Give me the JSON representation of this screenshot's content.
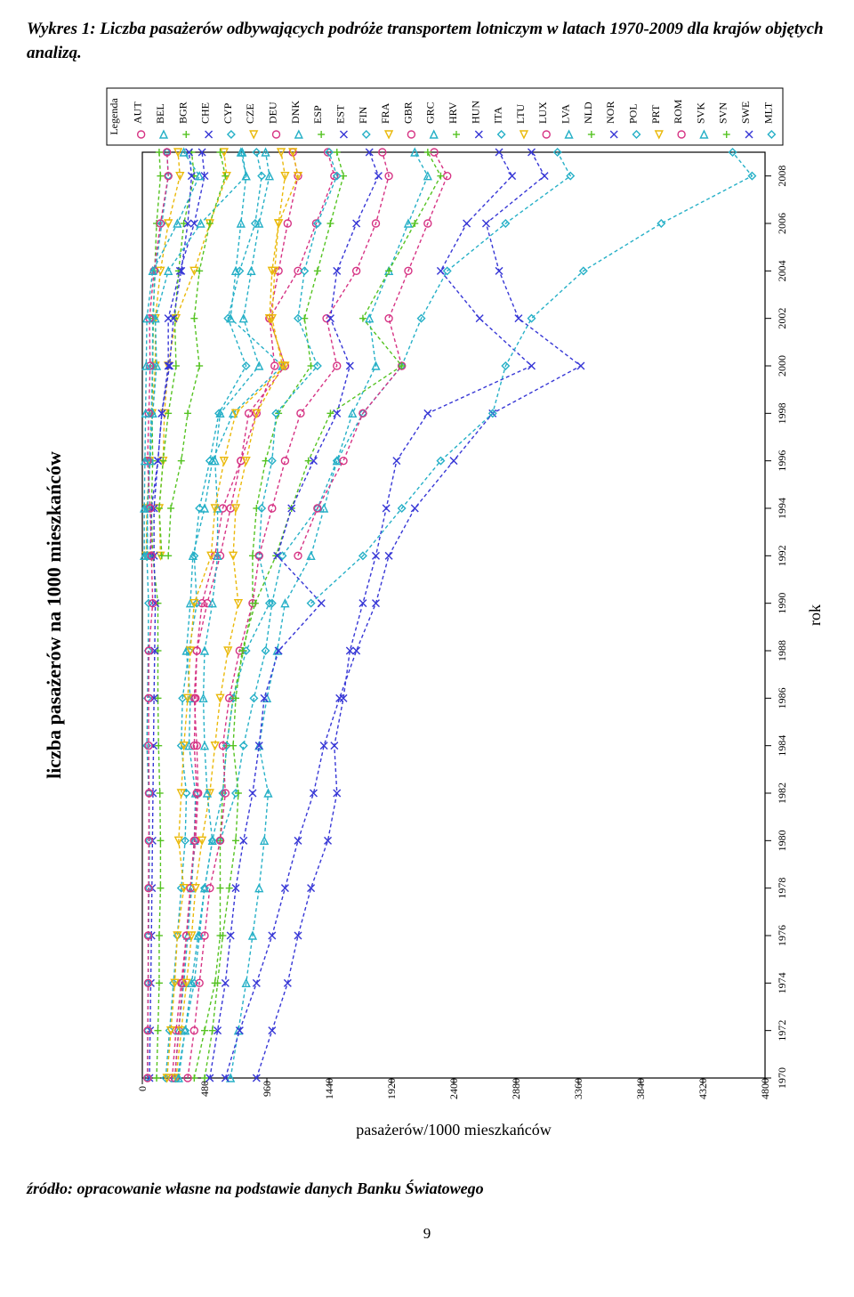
{
  "caption_prefix": "Wykres 1: ",
  "caption_rest": "Liczba pasażerów odbywających podróże transportem lotniczym w latach 1970-2009 dla krajów objętych analizą.",
  "y_outer_label": "liczba pasażerów na 1000 mieszkańców",
  "y_inner_label": "pasażerów/1000 mieszkańców",
  "x_label": "rok",
  "legend_title": "Legenda",
  "source": "źródło: opracowanie własne na podstawie danych Banku Światowego",
  "page_number": "9",
  "chart": {
    "type": "line",
    "background": "#ffffff",
    "axis_fontsize": 14,
    "tick_fontsize": 12,
    "legend_fontsize": 12,
    "line_width": 1.4,
    "line_dash": "4 3",
    "marker_size": 4,
    "marker_stroke": 1.4,
    "xlim": [
      1970,
      2009
    ],
    "xticks": [
      1970,
      1972,
      1974,
      1976,
      1978,
      1980,
      1982,
      1984,
      1986,
      1988,
      1990,
      1992,
      1994,
      1996,
      1998,
      2000,
      2002,
      2004,
      2006,
      2008
    ],
    "ylim": [
      0,
      4800
    ],
    "yticks": [
      0,
      480,
      960,
      1440,
      1920,
      2400,
      2880,
      3360,
      3840,
      4320,
      4800
    ],
    "years": [
      1970,
      1972,
      1974,
      1976,
      1978,
      1980,
      1982,
      1984,
      1986,
      1988,
      1990,
      1992,
      1994,
      1996,
      1998,
      2000,
      2002,
      2004,
      2006,
      2008,
      2009
    ],
    "markers": [
      "circle",
      "triangle",
      "plus",
      "x",
      "diamond",
      "down",
      "circle",
      "triangle",
      "plus",
      "x",
      "diamond",
      "down",
      "circle",
      "triangle",
      "plus",
      "x",
      "diamond",
      "down",
      "circle",
      "triangle",
      "plus",
      "x",
      "diamond",
      "down",
      "circle",
      "triangle",
      "plus",
      "x",
      "diamond"
    ],
    "colors": [
      "#d63384",
      "#26b0c7",
      "#55c322",
      "#3737d6",
      "#26b0c7",
      "#eab90a",
      "#d63384",
      "#26b0c7",
      "#55c322",
      "#3737d6",
      "#26b0c7",
      "#eab90a",
      "#d63384",
      "#26b0c7",
      "#55c322",
      "#3737d6",
      "#26b0c7",
      "#eab90a",
      "#d63384",
      "#26b0c7",
      "#55c322",
      "#3737d6",
      "#26b0c7",
      "#eab90a",
      "#d63384",
      "#26b0c7",
      "#55c322",
      "#3737d6",
      "#26b0c7"
    ],
    "series": [
      {
        "code": "AUT",
        "vals": [
          230,
          260,
          300,
          340,
          370,
          410,
          430,
          420,
          400,
          420,
          460,
          560,
          620,
          760,
          880,
          1020,
          980,
          1050,
          1120,
          1200,
          1160
        ]
      },
      {
        "code": "BEL",
        "vals": [
          250,
          280,
          320,
          350,
          380,
          400,
          410,
          360,
          370,
          340,
          370,
          390,
          480,
          540,
          700,
          1080,
          680,
          720,
          760,
          800,
          770
        ]
      },
      {
        "code": "BGR",
        "vals": [
          110,
          120,
          130,
          130,
          140,
          140,
          135,
          125,
          120,
          120,
          120,
          80,
          70,
          80,
          75,
          80,
          85,
          95,
          110,
          140,
          130
        ]
      },
      {
        "code": "CHE",
        "vals": [
          880,
          1000,
          1120,
          1200,
          1300,
          1430,
          1500,
          1480,
          1550,
          1600,
          1700,
          1800,
          1880,
          1960,
          2200,
          3000,
          2600,
          2300,
          2500,
          2850,
          2750
        ]
      },
      {
        "code": "CYP",
        "vals": [
          null,
          null,
          null,
          null,
          null,
          600,
          720,
          780,
          860,
          950,
          1000,
          1080,
          1350,
          1500,
          1700,
          2000,
          2150,
          2350,
          2800,
          3300,
          3200
        ]
      },
      {
        "code": "CZE",
        "vals": [
          null,
          null,
          null,
          null,
          null,
          null,
          null,
          null,
          null,
          null,
          null,
          140,
          130,
          160,
          170,
          200,
          260,
          400,
          520,
          650,
          630
        ]
      },
      {
        "code": "DEU",
        "vals": [
          250,
          280,
          310,
          340,
          370,
          400,
          420,
          400,
          410,
          420,
          500,
          600,
          680,
          760,
          820,
          1100,
          980,
          1200,
          1340,
          1480,
          1430
        ]
      },
      {
        "code": "DNK",
        "vals": [
          680,
          740,
          800,
          850,
          900,
          940,
          970,
          900,
          960,
          1040,
          1100,
          1300,
          1400,
          1500,
          1620,
          1800,
          1750,
          1900,
          2050,
          2200,
          2100
        ]
      },
      {
        "code": "ESP",
        "vals": [
          400,
          480,
          560,
          600,
          600,
          600,
          620,
          650,
          700,
          780,
          850,
          850,
          880,
          950,
          1050,
          1300,
          1250,
          1350,
          1450,
          1550,
          1500
        ]
      },
      {
        "code": "EST",
        "vals": [
          null,
          null,
          null,
          null,
          null,
          null,
          null,
          null,
          null,
          null,
          null,
          60,
          70,
          120,
          150,
          200,
          200,
          290,
          400,
          480,
          460
        ]
      },
      {
        "code": "FIN",
        "vals": [
          270,
          330,
          400,
          440,
          480,
          540,
          620,
          650,
          700,
          800,
          980,
          900,
          920,
          1000,
          1030,
          1350,
          1200,
          1250,
          1350,
          1500,
          1440
        ]
      },
      {
        "code": "FRA",
        "vals": [
          260,
          300,
          340,
          380,
          410,
          460,
          520,
          560,
          600,
          660,
          740,
          700,
          720,
          800,
          880,
          1080,
          1000,
          1020,
          1050,
          1100,
          1070
        ]
      },
      {
        "code": "GBR",
        "vals": [
          350,
          400,
          440,
          480,
          520,
          600,
          640,
          620,
          670,
          750,
          850,
          900,
          1000,
          1100,
          1220,
          1500,
          1420,
          1650,
          1800,
          1900,
          1850
        ]
      },
      {
        "code": "GRC",
        "vals": [
          280,
          330,
          380,
          430,
          480,
          540,
          500,
          480,
          470,
          480,
          540,
          580,
          580,
          560,
          600,
          900,
          780,
          840,
          900,
          980,
          950
        ]
      },
      {
        "code": "HRV",
        "vals": [
          null,
          null,
          null,
          null,
          null,
          null,
          null,
          null,
          null,
          null,
          null,
          150,
          130,
          160,
          200,
          260,
          250,
          280,
          320,
          400,
          380
        ]
      },
      {
        "code": "HUN",
        "vals": [
          55,
          60,
          65,
          70,
          74,
          78,
          82,
          86,
          90,
          95,
          100,
          90,
          90,
          120,
          150,
          210,
          240,
          300,
          350,
          380,
          360
        ]
      },
      {
        "code": "ITA",
        "vals": [
          180,
          210,
          240,
          270,
          300,
          330,
          340,
          300,
          310,
          360,
          420,
          400,
          440,
          520,
          590,
          800,
          660,
          750,
          870,
          920,
          880
        ]
      },
      {
        "code": "LTU",
        "vals": [
          null,
          null,
          null,
          null,
          null,
          null,
          null,
          null,
          null,
          null,
          null,
          30,
          35,
          55,
          75,
          100,
          100,
          140,
          200,
          290,
          275
        ]
      },
      {
        "code": "LUX",
        "vals": [
          null,
          null,
          null,
          null,
          null,
          null,
          null,
          null,
          null,
          null,
          null,
          1200,
          1350,
          1550,
          1700,
          2000,
          1900,
          2050,
          2200,
          2350,
          2250
        ]
      },
      {
        "code": "LVA",
        "vals": [
          null,
          null,
          null,
          null,
          null,
          null,
          null,
          null,
          null,
          null,
          null,
          40,
          40,
          60,
          80,
          110,
          100,
          200,
          450,
          800,
          760
        ]
      },
      {
        "code": "NLD",
        "vals": [
          480,
          540,
          580,
          620,
          670,
          720,
          740,
          700,
          720,
          770,
          870,
          1030,
          1150,
          1280,
          1450,
          2000,
          1700,
          1900,
          2100,
          2300,
          2200
        ]
      },
      {
        "code": "NOR",
        "vals": [
          640,
          750,
          880,
          1000,
          1100,
          1200,
          1320,
          1400,
          1520,
          1650,
          1800,
          1900,
          2100,
          2400,
          2700,
          3380,
          2900,
          2750,
          2650,
          3100,
          3000
        ]
      },
      {
        "code": "POL",
        "vals": [
          40,
          42,
          45,
          48,
          52,
          55,
          50,
          35,
          40,
          45,
          48,
          35,
          40,
          55,
          70,
          78,
          80,
          100,
          150,
          200,
          190
        ]
      },
      {
        "code": "PRT",
        "vals": [
          190,
          220,
          250,
          270,
          320,
          280,
          300,
          320,
          350,
          370,
          400,
          530,
          560,
          630,
          720,
          1100,
          980,
          1000,
          1050,
          1200,
          1160
        ]
      },
      {
        "code": "ROM",
        "vals": [
          40,
          42,
          45,
          45,
          48,
          50,
          52,
          48,
          48,
          50,
          80,
          70,
          60,
          40,
          50,
          60,
          55,
          90,
          140,
          200,
          190
        ]
      },
      {
        "code": "SVK",
        "vals": [
          null,
          null,
          null,
          null,
          null,
          null,
          null,
          null,
          null,
          null,
          null,
          15,
          15,
          20,
          25,
          30,
          35,
          80,
          270,
          440,
          320
        ]
      },
      {
        "code": "SVN",
        "vals": [
          null,
          null,
          null,
          null,
          null,
          null,
          null,
          null,
          null,
          null,
          null,
          200,
          220,
          300,
          350,
          440,
          400,
          440,
          520,
          640,
          600
        ]
      },
      {
        "code": "SWE",
        "vals": [
          520,
          580,
          640,
          680,
          720,
          780,
          850,
          900,
          940,
          1050,
          1380,
          1040,
          1150,
          1320,
          1500,
          1600,
          1450,
          1500,
          1650,
          1820,
          1750
        ]
      },
      {
        "code": "MLT",
        "vals": [
          null,
          null,
          null,
          null,
          null,
          null,
          null,
          null,
          null,
          null,
          1300,
          1700,
          2000,
          2300,
          2700,
          2800,
          3000,
          3400,
          4000,
          4700,
          4550
        ]
      }
    ]
  }
}
